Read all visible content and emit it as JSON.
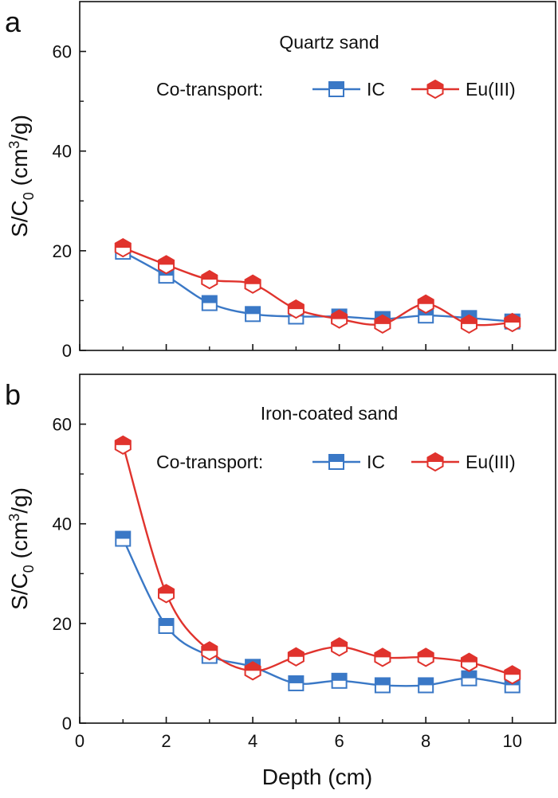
{
  "figure": {
    "x_axis_title": "Depth (cm)"
  },
  "chart_data": [
    {
      "type": "line",
      "panel_label": "a",
      "title": "Quartz sand",
      "legend_heading": "Co-transport:",
      "legend_position": "top",
      "ylabel": {
        "prefix": "S/C",
        "subscript": "0",
        "unit_prefix": " (cm",
        "superscript": "3",
        "unit_suffix": "/g)"
      },
      "xlabel": "Depth (cm)",
      "xlim": [
        0,
        11
      ],
      "ylim": [
        0,
        70
      ],
      "xticks": [
        0,
        2,
        4,
        6,
        8,
        10
      ],
      "yticks": [
        0,
        20,
        40,
        60
      ],
      "show_x_tick_labels": false,
      "grid": false,
      "series": [
        {
          "name": "IC",
          "marker": "square",
          "color": "#3a78c6",
          "x": [
            1,
            2,
            3,
            4,
            5,
            6,
            7,
            8,
            9,
            10
          ],
          "values": [
            19.8,
            15.0,
            9.5,
            7.3,
            6.8,
            6.8,
            6.3,
            7.0,
            6.5,
            5.8
          ]
        },
        {
          "name": "Eu(III)",
          "marker": "hexagon",
          "color": "#e0332d",
          "x": [
            1,
            2,
            3,
            4,
            5,
            6,
            7,
            8,
            9,
            10
          ],
          "values": [
            20.6,
            17.2,
            14.2,
            13.3,
            8.3,
            6.3,
            5.3,
            9.3,
            5.3,
            5.6
          ]
        }
      ]
    },
    {
      "type": "line",
      "panel_label": "b",
      "title": "Iron-coated sand",
      "legend_heading": "Co-transport:",
      "legend_position": "top",
      "ylabel": {
        "prefix": "S/C",
        "subscript": "0",
        "unit_prefix": " (cm",
        "superscript": "3",
        "unit_suffix": "/g)"
      },
      "xlabel": "Depth (cm)",
      "xlim": [
        0,
        11
      ],
      "ylim": [
        0,
        70
      ],
      "xticks": [
        0,
        2,
        4,
        6,
        8,
        10
      ],
      "yticks": [
        0,
        20,
        40,
        60
      ],
      "show_x_tick_labels": true,
      "grid": false,
      "series": [
        {
          "name": "IC",
          "marker": "square",
          "color": "#3a78c6",
          "x": [
            1,
            2,
            3,
            4,
            5,
            6,
            7,
            8,
            9,
            10
          ],
          "values": [
            37.0,
            19.5,
            13.5,
            11.3,
            8.0,
            8.5,
            7.6,
            7.6,
            9.0,
            7.6
          ]
        },
        {
          "name": "Eu(III)",
          "marker": "hexagon",
          "color": "#e0332d",
          "x": [
            1,
            2,
            3,
            4,
            5,
            6,
            7,
            8,
            9,
            10
          ],
          "values": [
            55.8,
            26.0,
            14.5,
            10.5,
            13.3,
            15.3,
            13.2,
            13.2,
            12.2,
            9.7
          ]
        }
      ]
    }
  ]
}
